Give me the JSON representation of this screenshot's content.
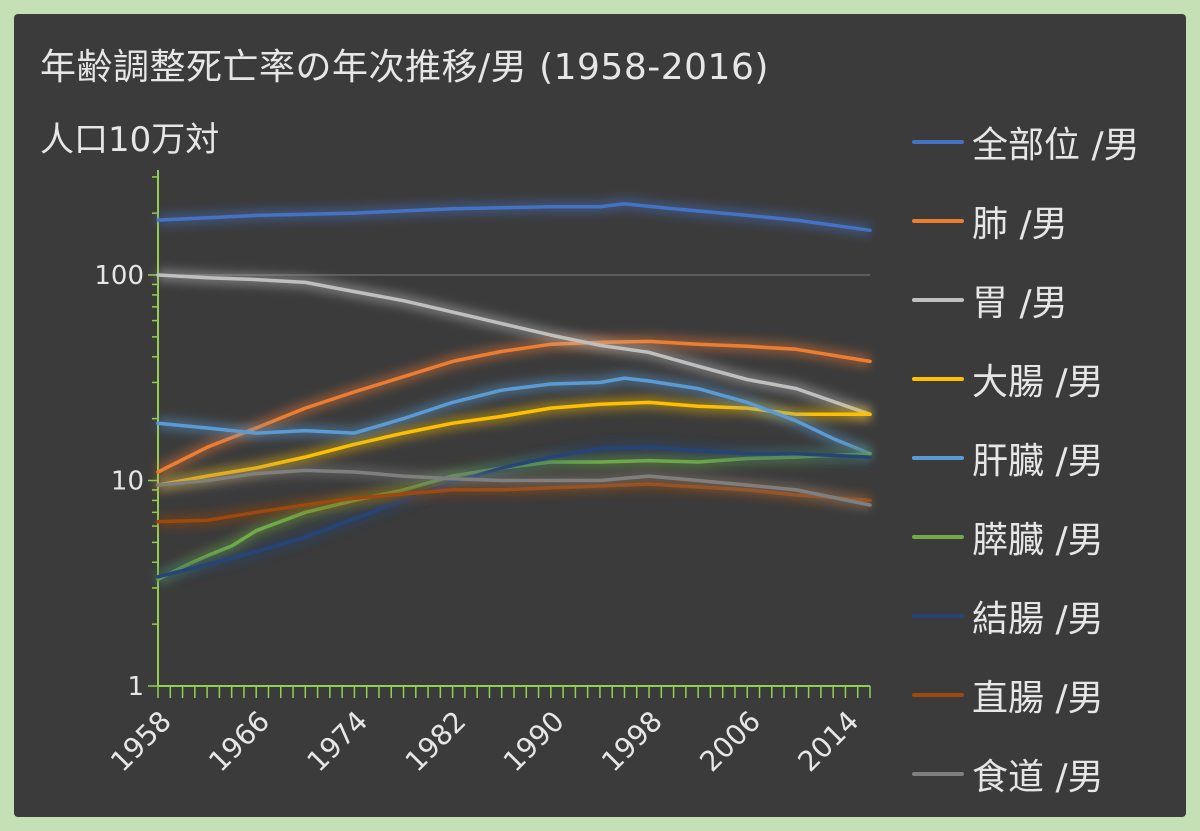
{
  "chart_data": {
    "type": "line",
    "title": "年齢調整死亡率の年次推移/男 (1958-2016)",
    "ylabel": "人口10万対",
    "xlabel": "",
    "y_scale": "log",
    "ylim": [
      1,
      300
    ],
    "y_ticks": [
      1,
      10,
      100
    ],
    "y_tick_labels": [
      "1",
      "10",
      "100"
    ],
    "x_range": [
      1958,
      2016
    ],
    "x_ticks": [
      1958,
      1966,
      1974,
      1982,
      1990,
      1998,
      2006,
      2014
    ],
    "x_tick_labels": [
      "1958",
      "1966",
      "1974",
      "1982",
      "1990",
      "1998",
      "2006",
      "2014"
    ],
    "grid": "horizontal at 100",
    "legend_position": "right",
    "series": [
      {
        "name": "全部位 /男",
        "color": "#4472c4",
        "points": [
          [
            1958,
            185
          ],
          [
            1966,
            195
          ],
          [
            1974,
            200
          ],
          [
            1982,
            210
          ],
          [
            1990,
            215
          ],
          [
            1994,
            215
          ],
          [
            1996,
            222
          ],
          [
            2000,
            210
          ],
          [
            2006,
            195
          ],
          [
            2010,
            185
          ],
          [
            2016,
            165
          ]
        ]
      },
      {
        "name": "肺 /男",
        "color": "#ed7d31",
        "points": [
          [
            1958,
            11
          ],
          [
            1962,
            14.5
          ],
          [
            1966,
            18
          ],
          [
            1970,
            22.5
          ],
          [
            1974,
            27
          ],
          [
            1978,
            32
          ],
          [
            1982,
            38
          ],
          [
            1986,
            42.5
          ],
          [
            1990,
            46
          ],
          [
            1994,
            47
          ],
          [
            1998,
            47.5
          ],
          [
            2002,
            46
          ],
          [
            2006,
            45
          ],
          [
            2010,
            43.5
          ],
          [
            2016,
            38
          ]
        ]
      },
      {
        "name": "胃 /男",
        "color": "#bfbfbf",
        "points": [
          [
            1958,
            100
          ],
          [
            1962,
            97
          ],
          [
            1966,
            95
          ],
          [
            1970,
            92
          ],
          [
            1974,
            83
          ],
          [
            1978,
            75
          ],
          [
            1982,
            66
          ],
          [
            1986,
            58
          ],
          [
            1990,
            51
          ],
          [
            1994,
            45.5
          ],
          [
            1998,
            42
          ],
          [
            2002,
            36
          ],
          [
            2006,
            31
          ],
          [
            2010,
            28
          ],
          [
            2016,
            21
          ]
        ]
      },
      {
        "name": "大腸 /男",
        "color": "#ffc000",
        "points": [
          [
            1958,
            9.5
          ],
          [
            1962,
            10.5
          ],
          [
            1966,
            11.5
          ],
          [
            1970,
            13
          ],
          [
            1974,
            15
          ],
          [
            1978,
            17
          ],
          [
            1982,
            19
          ],
          [
            1986,
            20.5
          ],
          [
            1990,
            22.5
          ],
          [
            1994,
            23.5
          ],
          [
            1998,
            24
          ],
          [
            2002,
            23
          ],
          [
            2006,
            22.5
          ],
          [
            2010,
            21
          ],
          [
            2016,
            21
          ]
        ]
      },
      {
        "name": "肝臓 /男",
        "color": "#5b9bd5",
        "points": [
          [
            1958,
            19
          ],
          [
            1962,
            18
          ],
          [
            1966,
            17
          ],
          [
            1970,
            17.5
          ],
          [
            1974,
            17
          ],
          [
            1978,
            20
          ],
          [
            1982,
            24
          ],
          [
            1986,
            27.5
          ],
          [
            1990,
            29.5
          ],
          [
            1994,
            30
          ],
          [
            1996,
            31.5
          ],
          [
            1998,
            30.5
          ],
          [
            2002,
            28
          ],
          [
            2006,
            24
          ],
          [
            2010,
            19.5
          ],
          [
            2013,
            16
          ],
          [
            2016,
            13.5
          ]
        ]
      },
      {
        "name": "膵臓 /男",
        "color": "#70ad47",
        "points": [
          [
            1958,
            3.3
          ],
          [
            1960,
            3.8
          ],
          [
            1962,
            4.3
          ],
          [
            1964,
            4.8
          ],
          [
            1966,
            5.7
          ],
          [
            1970,
            7
          ],
          [
            1974,
            8
          ],
          [
            1978,
            9
          ],
          [
            1982,
            10.5
          ],
          [
            1986,
            11.5
          ],
          [
            1990,
            12.3
          ],
          [
            1994,
            12.3
          ],
          [
            1998,
            12.5
          ],
          [
            2002,
            12.3
          ],
          [
            2006,
            12.8
          ],
          [
            2010,
            13
          ],
          [
            2016,
            13.5
          ]
        ]
      },
      {
        "name": "結腸 /男",
        "color": "#264478",
        "points": [
          [
            1958,
            3.4
          ],
          [
            1962,
            3.9
          ],
          [
            1966,
            4.5
          ],
          [
            1970,
            5.3
          ],
          [
            1974,
            6.5
          ],
          [
            1978,
            8
          ],
          [
            1982,
            9.8
          ],
          [
            1986,
            11.5
          ],
          [
            1990,
            13
          ],
          [
            1994,
            14.3
          ],
          [
            1998,
            14.5
          ],
          [
            2002,
            14
          ],
          [
            2006,
            13.5
          ],
          [
            2010,
            13.5
          ],
          [
            2016,
            13
          ]
        ]
      },
      {
        "name": "直腸 /男",
        "color": "#9e480e",
        "points": [
          [
            1958,
            6.3
          ],
          [
            1962,
            6.4
          ],
          [
            1966,
            7
          ],
          [
            1970,
            7.6
          ],
          [
            1974,
            8.2
          ],
          [
            1978,
            8.6
          ],
          [
            1982,
            9
          ],
          [
            1986,
            9
          ],
          [
            1990,
            9.2
          ],
          [
            1994,
            9.4
          ],
          [
            1998,
            9.6
          ],
          [
            2002,
            9.3
          ],
          [
            2006,
            9
          ],
          [
            2010,
            8.5
          ],
          [
            2016,
            8
          ]
        ]
      },
      {
        "name": "食道 /男",
        "color": "#7f7f7f",
        "points": [
          [
            1958,
            9.5
          ],
          [
            1962,
            10
          ],
          [
            1966,
            10.8
          ],
          [
            1970,
            11.2
          ],
          [
            1974,
            11
          ],
          [
            1978,
            10.5
          ],
          [
            1982,
            10.2
          ],
          [
            1986,
            10
          ],
          [
            1990,
            10
          ],
          [
            1994,
            10
          ],
          [
            1998,
            10.5
          ],
          [
            2002,
            10
          ],
          [
            2006,
            9.5
          ],
          [
            2010,
            9
          ],
          [
            2016,
            7.6
          ]
        ]
      }
    ]
  }
}
